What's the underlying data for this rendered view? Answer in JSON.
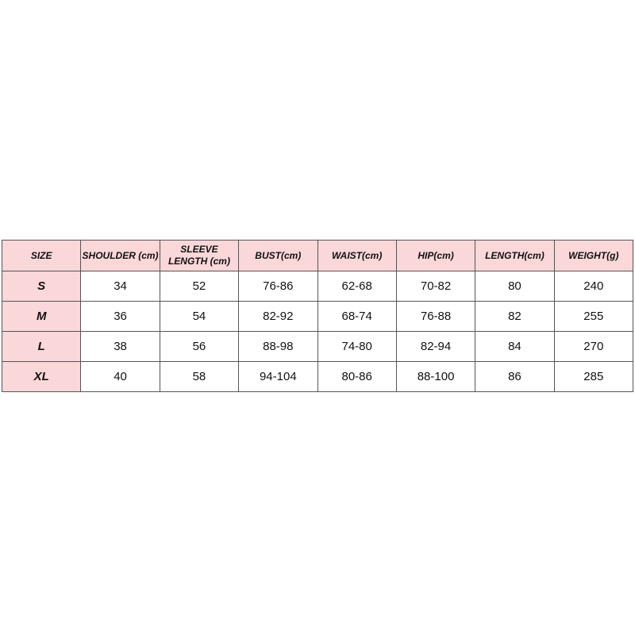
{
  "table": {
    "headers": [
      "SIZE",
      "SHOULDER (cm)",
      "SLEEVE LENGTH (cm)",
      "BUST(cm)",
      "WAIST(cm)",
      "HIP(cm)",
      "LENGTH(cm)",
      "WEIGHT(g)"
    ],
    "rows": [
      [
        "S",
        "34",
        "52",
        "76-86",
        "62-68",
        "70-82",
        "80",
        "240"
      ],
      [
        "M",
        "36",
        "54",
        "82-92",
        "68-74",
        "76-88",
        "82",
        "255"
      ],
      [
        "L",
        "38",
        "56",
        "88-98",
        "74-80",
        "82-94",
        "84",
        "270"
      ],
      [
        "XL",
        "40",
        "58",
        "94-104",
        "80-86",
        "88-100",
        "86",
        "285"
      ]
    ]
  },
  "colors": {
    "header_bg": "#fad7d9"
  }
}
